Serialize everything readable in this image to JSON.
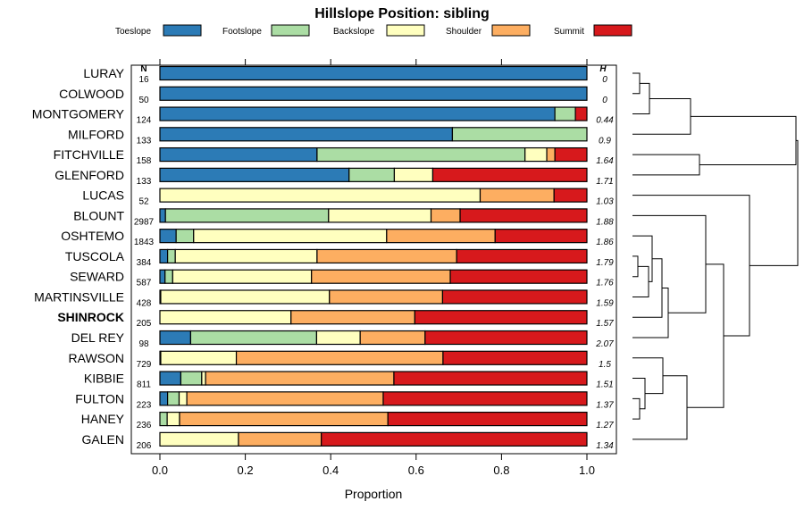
{
  "chart_data": {
    "type": "bar",
    "orientation": "horizontal",
    "stacked": true,
    "title": "Hillslope Position: sibling",
    "xlabel": "Proportion",
    "xlim": [
      0,
      1
    ],
    "xticks": [
      "0.0",
      "0.2",
      "0.4",
      "0.6",
      "0.8",
      "1.0"
    ],
    "xtick_values": [
      0,
      0.2,
      0.4,
      0.6,
      0.8,
      1.0
    ],
    "n_header": "N",
    "h_header": "H",
    "legend_position": "top",
    "categories": [
      "LURAY",
      "COLWOOD",
      "MONTGOMERY",
      "MILFORD",
      "FITCHVILLE",
      "GLENFORD",
      "LUCAS",
      "BLOUNT",
      "OSHTEMO",
      "TUSCOLA",
      "SEWARD",
      "MARTINSVILLE",
      "SHINROCK",
      "DEL REY",
      "RAWSON",
      "KIBBIE",
      "FULTON",
      "HANEY",
      "GALEN"
    ],
    "highlight": "SHINROCK",
    "n": [
      "16",
      "50",
      "124",
      "133",
      "158",
      "133",
      "52",
      "2987",
      "1843",
      "384",
      "587",
      "428",
      "205",
      "98",
      "729",
      "811",
      "223",
      "236",
      "206"
    ],
    "h": [
      "0",
      "0",
      "0.44",
      "0.9",
      "1.64",
      "1.71",
      "1.03",
      "1.88",
      "1.86",
      "1.79",
      "1.76",
      "1.59",
      "1.57",
      "2.07",
      "1.5",
      "1.51",
      "1.37",
      "1.27",
      "1.34"
    ],
    "series": [
      {
        "name": "Toeslope",
        "color": "#2c7bb6",
        "values": [
          1.0,
          1.0,
          0.925,
          0.685,
          0.368,
          0.443,
          0,
          0.013,
          0.038,
          0.018,
          0.012,
          0.002,
          0,
          0.072,
          0.002,
          0.049,
          0.018,
          0,
          0
        ]
      },
      {
        "name": "Footslope",
        "color": "#abdda4",
        "values": [
          0,
          0,
          0.048,
          0.315,
          0.487,
          0.106,
          0,
          0.382,
          0.041,
          0.018,
          0.018,
          0,
          0,
          0.295,
          0,
          0.049,
          0.027,
          0.017,
          0
        ]
      },
      {
        "name": "Backslope",
        "color": "#ffffbf",
        "values": [
          0,
          0,
          0,
          0,
          0.051,
          0.09,
          0.75,
          0.24,
          0.452,
          0.332,
          0.325,
          0.395,
          0.307,
          0.102,
          0.177,
          0.009,
          0.018,
          0.029,
          0.184
        ]
      },
      {
        "name": "Shoulder",
        "color": "#fdae61",
        "values": [
          0,
          0,
          0,
          0,
          0.019,
          0,
          0.173,
          0.068,
          0.254,
          0.327,
          0.325,
          0.265,
          0.29,
          0.152,
          0.484,
          0.441,
          0.46,
          0.488,
          0.194
        ]
      },
      {
        "name": "Summit",
        "color": "#d7191c",
        "values": [
          0,
          0,
          0.027,
          0,
          0.075,
          0.361,
          0.077,
          0.297,
          0.215,
          0.305,
          0.32,
          0.338,
          0.403,
          0.379,
          0.337,
          0.452,
          0.477,
          0.466,
          0.622
        ]
      }
    ]
  }
}
